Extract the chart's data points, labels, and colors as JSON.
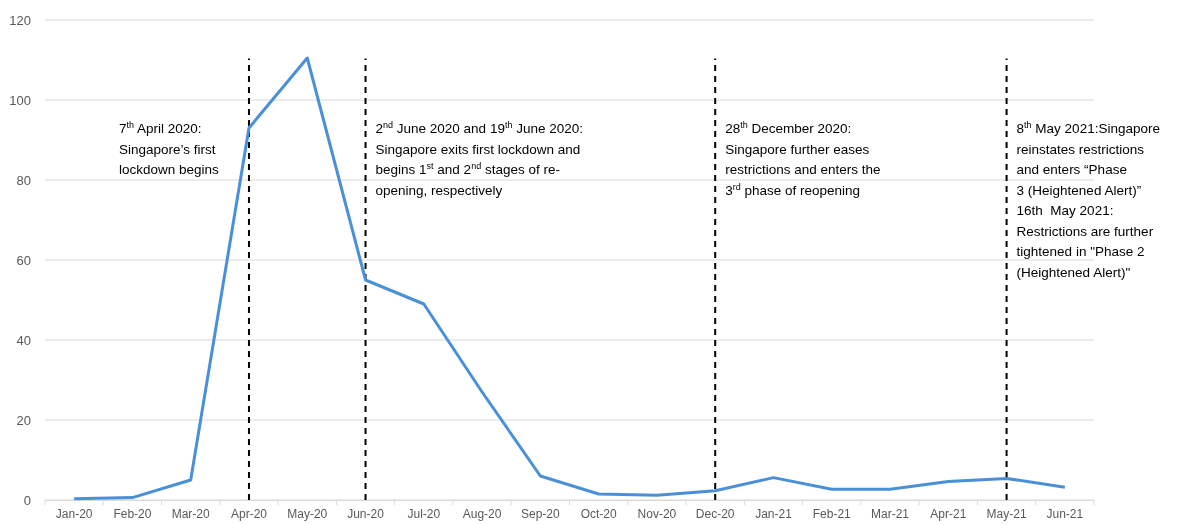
{
  "chart_data": {
    "type": "line",
    "categories": [
      "Jan-20",
      "Feb-20",
      "Mar-20",
      "Apr-20",
      "May-20",
      "Jun-20",
      "Jul-20",
      "Aug-20",
      "Sep-20",
      "Oct-20",
      "Nov-20",
      "Dec-20",
      "Jan-21",
      "Feb-21",
      "Mar-21",
      "Apr-21",
      "May-21",
      "Jun-21"
    ],
    "series": [
      {
        "color": "#4a90d9",
        "values": [
          0.3,
          0.6,
          5,
          93,
          110.5,
          55,
          49,
          27,
          6,
          1.5,
          1.2,
          2.3,
          5.6,
          2.7,
          2.7,
          4.6,
          5.4,
          3.2
        ]
      }
    ],
    "ylim": [
      0,
      120
    ],
    "yticks": [
      0,
      20,
      40,
      60,
      80,
      100,
      120
    ],
    "grid": "y",
    "marker": "none",
    "line_style": "solid",
    "ref_lines": [
      {
        "axis": "x",
        "value": "Apr-20",
        "color": "#000000",
        "line_style": "dashed",
        "label": "7$^{th}$ April 2020:\nSingapore’s first\nlockdown begins"
      },
      {
        "axis": "x",
        "value": "Jun-20",
        "color": "#000000",
        "line_style": "dashed",
        "label": "2$^{nd}$ June 2020 and 19$^{th}$ June 2020:\nSingapore exits first lockdown and\nbegins 1$^{st}$ and 2$^{nd}$ stages of re-\nopening, respectively"
      },
      {
        "axis": "x",
        "value": "Dec-20",
        "color": "#000000",
        "line_style": "dashed",
        "label": "28$^{th}$ December 2020:\nSingapore further eases\nrestrictions and enters the\n3$^{rd}$ phase of reopening"
      },
      {
        "axis": "x",
        "value": "May-21",
        "color": "#000000",
        "line_style": "dashed",
        "label": "8$^{th}$ May 2021:Singapore\nreinstates restrictions\nand enters “Phase\n3 (Heightened Alert)”\n16th  May 2021:\nRestrictions are further\ntightened in \"Phase 2\n(Heightened Alert)\""
      }
    ]
  }
}
